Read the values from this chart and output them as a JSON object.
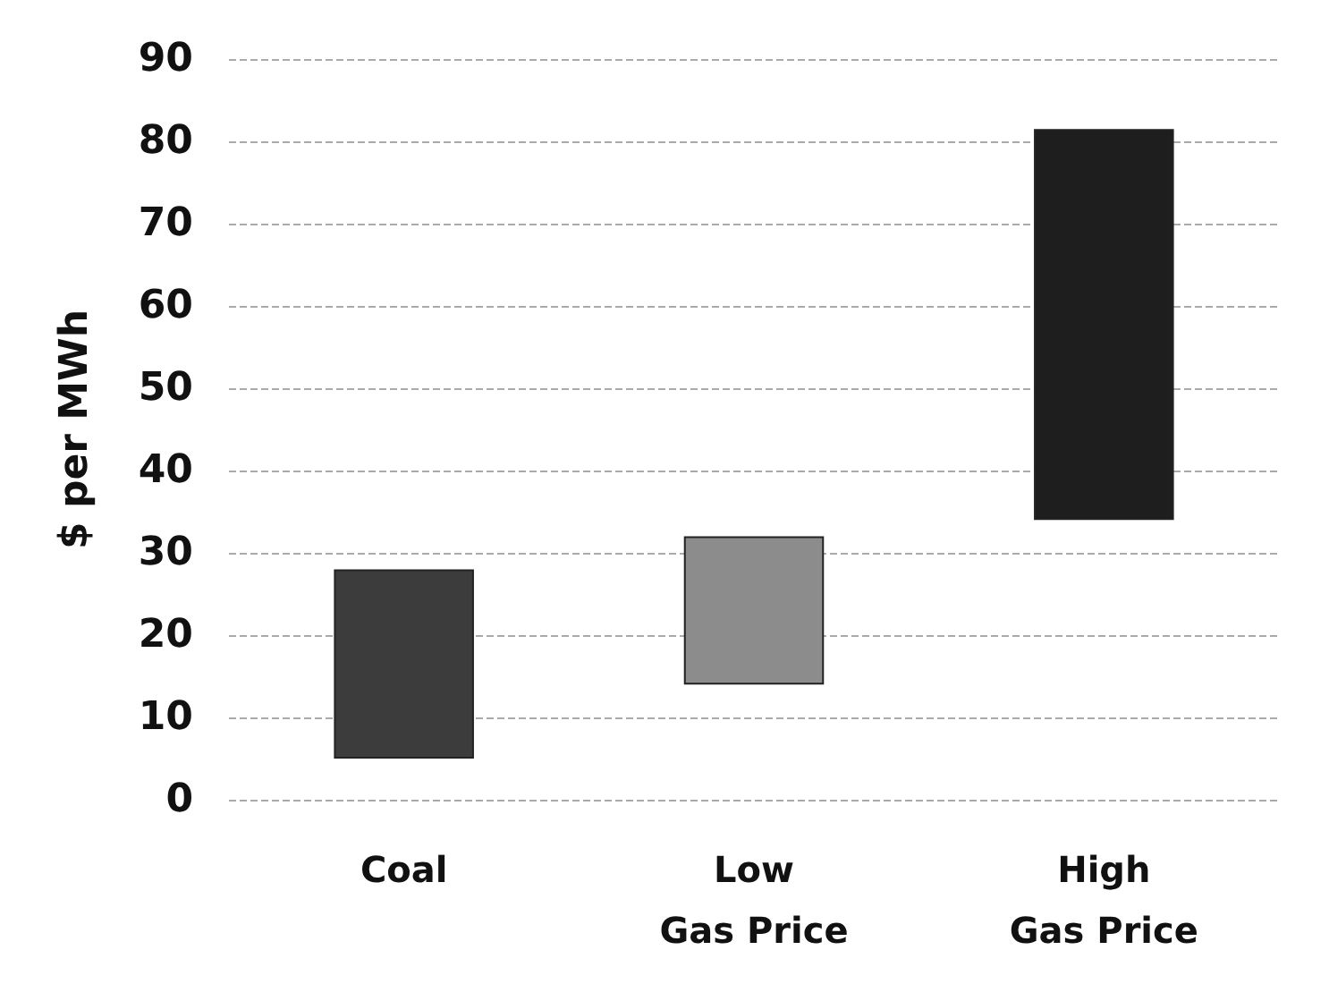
{
  "chart_data": {
    "type": "bar",
    "ylabel": "$ per MWh",
    "categories": [
      "Coal",
      "Low\nGas Price",
      "High\nGas Price"
    ],
    "series": [
      {
        "colors": [
          "#3c3c3c",
          "#8c8c8c",
          "#1e1e1e"
        ],
        "base": [
          5,
          14,
          34
        ],
        "values": [
          23,
          18,
          47.5
        ]
      }
    ],
    "ylim": [
      0,
      90
    ],
    "yticks": [
      0,
      10,
      20,
      30,
      40,
      50,
      60,
      70,
      80,
      90
    ],
    "grid": "y"
  }
}
